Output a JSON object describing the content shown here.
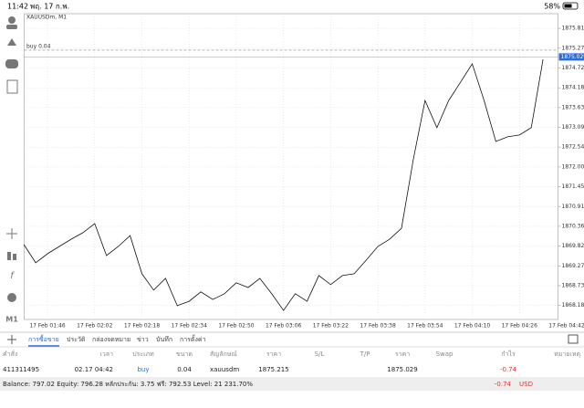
{
  "status_bar": {
    "time": "11:42",
    "date": "พฤ. 17 ก.พ.",
    "battery": "58%"
  },
  "chart": {
    "type": "line",
    "symbol": "XAUUSDm, M1",
    "categories": [
      null,
      null,
      "17 Feb 01:46",
      null,
      null,
      null,
      "17 Feb 02:02",
      null,
      null,
      null,
      "17 Feb 02:18",
      null,
      null,
      null,
      "17 Feb 02:34",
      null,
      null,
      null,
      "17 Feb 02:50",
      null,
      null,
      null,
      "17 Feb 03:06",
      null,
      null,
      null,
      "17 Feb 03:22",
      null,
      null,
      null,
      "17 Feb 03:38",
      null,
      null,
      null,
      "17 Feb 03:54",
      null,
      null,
      null,
      "17 Feb 04:10",
      null,
      null,
      null,
      "17 Feb 04:26",
      null,
      null,
      null,
      "17 Feb 04:42"
    ],
    "values": [
      1869.86,
      1869.36,
      1869.61,
      1869.81,
      1870.01,
      1870.19,
      1870.44,
      1869.56,
      1869.81,
      1870.11,
      1869.06,
      1868.61,
      1868.93,
      1868.18,
      1868.3,
      1868.56,
      1868.35,
      1868.51,
      1868.81,
      1868.68,
      1868.93,
      1868.51,
      1868.05,
      1868.51,
      1868.3,
      1869.01,
      1868.76,
      1869.01,
      1869.06,
      1869.43,
      1869.81,
      1870.01,
      1870.31,
      1872.2,
      1873.83,
      1873.08,
      1873.83,
      1874.33,
      1874.84,
      1873.83,
      1872.7,
      1872.83,
      1872.88,
      1873.08,
      1874.96,
      null,
      null
    ],
    "color": "#111111",
    "ylim": [
      1867.8,
      1876.22
    ],
    "yticks": [
      1875.815,
      {
        "value": 1875.27,
        "label": "1875.270"
      },
      1874.725,
      {
        "value": 1874.18,
        "label": "1874.180"
      },
      1873.635,
      {
        "value": 1873.09,
        "label": "1873.090"
      },
      1872.545,
      {
        "value": 1872,
        "label": "1872.000"
      },
      1871.455,
      {
        "value": 1870.91,
        "label": "1870.910"
      },
      1870.365,
      {
        "value": 1869.82,
        "label": "1869.820"
      },
      1869.275,
      {
        "value": 1868.73,
        "label": "1868.730"
      },
      1868.185
    ],
    "grid": true,
    "current_price": 1875.029,
    "order_label": "buy 0.04"
  },
  "tabs": {
    "items": [
      "การซื้อขาย",
      "ประวัติ",
      "กล่องจดหมาย",
      "ข่าว",
      "บันทึก",
      "การตั้งค่า"
    ],
    "active": 0
  },
  "table": {
    "header": [
      "คำสั่ง",
      "เวลา",
      "ประเภท",
      "ขนาด",
      "สัญลักษณ์",
      "ราคา",
      "S/L",
      "T/P",
      "ราคา",
      "Swap",
      "กำไร",
      "หมายเหตุ"
    ],
    "rows": [
      [
        "411311495",
        "02.17 04:42",
        "buy",
        "0.04",
        "xauusdm",
        "1875.215",
        null,
        null,
        "1875.029",
        null,
        "-0.74",
        null
      ]
    ]
  },
  "open_price": 1875.215,
  "summary": {
    "text": "Balance: 797.02 Equity: 796.28 หลักประกัน: 3.75 ฟรี: 792.53 Level: 21 231.70%",
    "profit": "-0.74",
    "currency": "USD"
  }
}
